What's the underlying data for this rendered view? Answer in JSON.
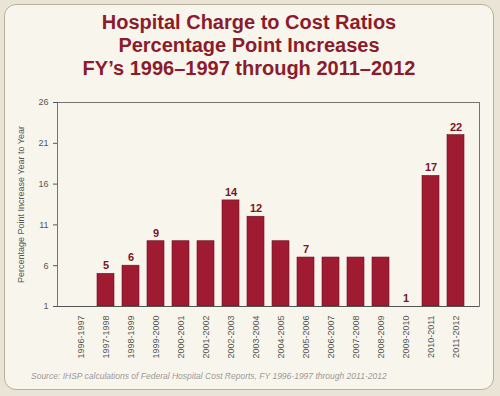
{
  "chart_data": {
    "type": "bar",
    "title": "Hospital Charge to Cost Ratios\nPercentage Point Increases\nFY’s 1996–1997 through 2011–2012",
    "y_label": "Percentage Point Increase Year to Year",
    "caption": "Source: IHSP calculations of Federal Hospital Cost Reports, FY 1996-1997 through 2011-2012",
    "categories": [
      "1996-1997",
      "1997-1998",
      "1998-1999",
      "1999-2000",
      "2000-2001",
      "2001-2002",
      "2002-2003",
      "2003-2004",
      "2004-2005",
      "2005-2006",
      "2006-2007",
      "2007-2008",
      "2008-2009",
      "2009-2010",
      "2010-2011",
      "2011-2012"
    ],
    "values": [
      null,
      5,
      6,
      9,
      9,
      9,
      14,
      12,
      9,
      7,
      7,
      7,
      7,
      1,
      17,
      22
    ],
    "value_labels": [
      null,
      "5",
      "6",
      "9",
      null,
      null,
      "14",
      "12",
      null,
      "7",
      null,
      null,
      null,
      "1",
      "17",
      "22"
    ],
    "data_labels": true,
    "color": "#9e1b32",
    "ylim": [
      1,
      26
    ],
    "yticks": [
      1,
      6,
      11,
      16,
      21,
      26
    ],
    "grid": false
  }
}
